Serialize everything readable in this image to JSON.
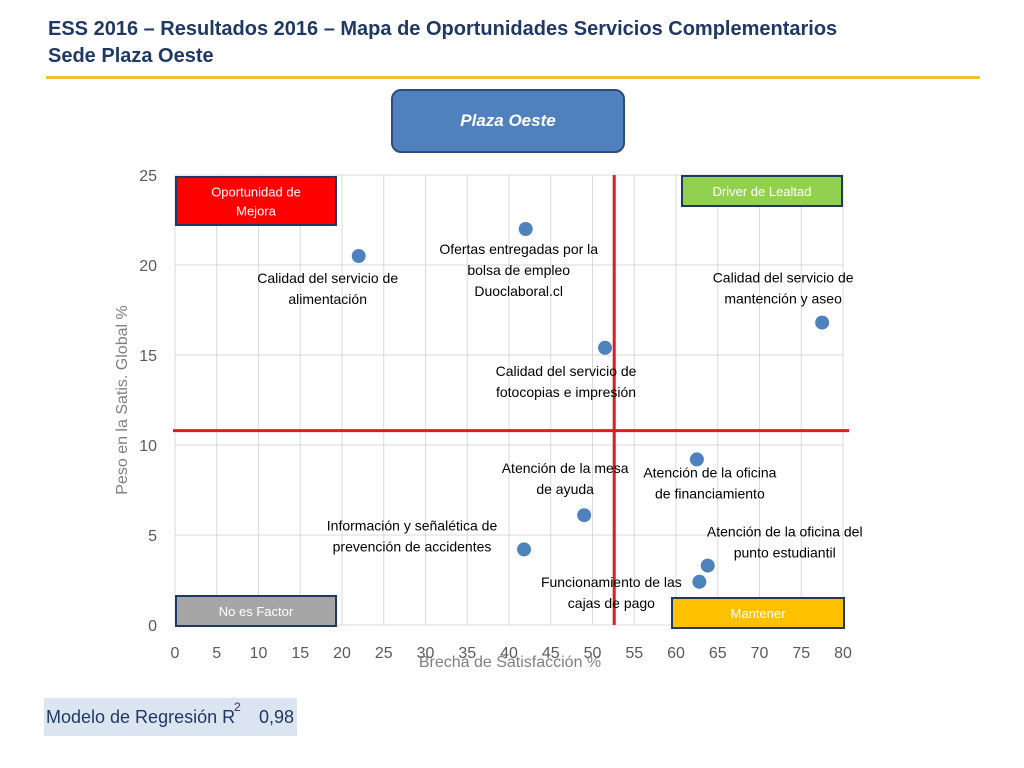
{
  "header": {
    "title_line1": "ESS 2016 – Resultados 2016 – Mapa de Oportunidades Servicios Complementarios",
    "title_line2": "Sede Plaza Oeste"
  },
  "campus_button": {
    "label": "Plaza Oeste"
  },
  "quadrants": {
    "top_left": {
      "lines": [
        "Oportunidad de",
        "Mejora"
      ],
      "color": "#ff0000",
      "text_color": "#ffffff"
    },
    "top_right": {
      "lines": [
        "Driver de Lealtad"
      ],
      "color": "#92d050",
      "text_color": "#ffffff"
    },
    "bottom_left": {
      "lines": [
        "No es Factor"
      ],
      "color": "#a6a6a6",
      "text_color": "#ffffff"
    },
    "bottom_right": {
      "lines": [
        "Mantener"
      ],
      "color": "#ffc000",
      "text_color": "#ffffff"
    }
  },
  "regression": {
    "label": "Modelo de Regresión R",
    "sup": "2",
    "value": "0,98"
  },
  "colors": {
    "point": "#4f81bd",
    "reference_line": "#e21a1a",
    "grid": "#d9d9d9",
    "title": "#1f3864",
    "title_rule": "#f2c12e"
  },
  "chart_data": {
    "type": "scatter",
    "xlabel": "Brecha de Satisfacción %",
    "ylabel": "Peso en la Satis. Global %",
    "xlim": [
      0,
      80
    ],
    "ylim": [
      0,
      25
    ],
    "x_ticks": [
      "0",
      "5",
      "10",
      "15",
      "20",
      "25",
      "30",
      "35",
      "40",
      "45",
      "50",
      "55",
      "60",
      "65",
      "70",
      "75",
      "80"
    ],
    "y_ticks": [
      "0",
      "5",
      "10",
      "15",
      "20",
      "25"
    ],
    "grid": true,
    "reference_lines": {
      "x": 52.6,
      "y": 10.8
    },
    "points": [
      {
        "x": 22.0,
        "y": 20.5,
        "lines": [
          "Calidad del servicio de",
          "alimentación"
        ]
      },
      {
        "x": 42.0,
        "y": 22.0,
        "lines": [
          "Ofertas entregadas por la",
          "bolsa de empleo",
          "Duoclaboral.cl"
        ]
      },
      {
        "x": 77.5,
        "y": 16.8,
        "lines": [
          "Calidad del servicio de",
          "mantención y aseo"
        ]
      },
      {
        "x": 51.5,
        "y": 15.4,
        "lines": [
          "Calidad del servicio de",
          "fotocopias e impresión"
        ]
      },
      {
        "x": 62.5,
        "y": 9.2,
        "lines": [
          "Atención de la oficina",
          "de financiamiento"
        ]
      },
      {
        "x": 49.0,
        "y": 6.1,
        "lines": [
          "Atención de la mesa",
          "de ayuda"
        ]
      },
      {
        "x": 41.8,
        "y": 4.2,
        "lines": [
          "Información y señalética de",
          "prevención de accidentes"
        ]
      },
      {
        "x": 63.8,
        "y": 3.3,
        "lines": [
          "Atención de la oficina del",
          "punto estudiantil"
        ]
      },
      {
        "x": 62.8,
        "y": 2.4,
        "lines": [
          "Funcionamiento de las",
          "cajas de pago"
        ]
      }
    ]
  }
}
